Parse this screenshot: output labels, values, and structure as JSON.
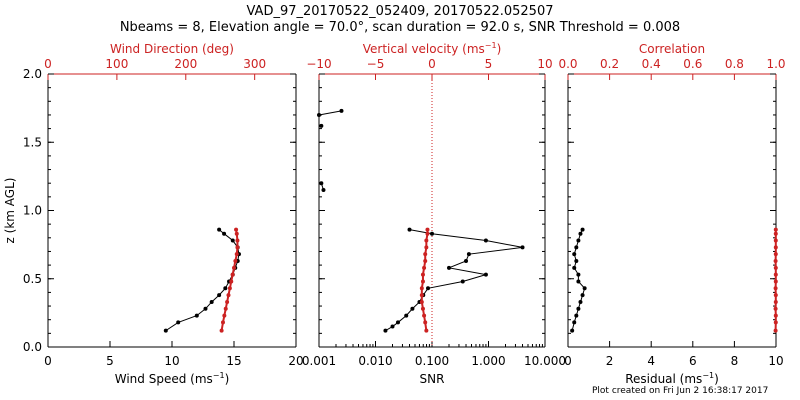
{
  "header": {
    "title": "VAD_97_20170522_052409, 20170522.052507",
    "subtitle": "Nbeams = 8, Elevation angle = 70.0°, scan duration = 92.0 s, SNR Threshold = 0.008"
  },
  "footer": {
    "text": "Plot created on Fri Jun  2 16:38:17 2017"
  },
  "colors": {
    "axis": "#000000",
    "secondary": "#cc2222",
    "marker": "#000000"
  },
  "chart_data": [
    {
      "type": "line",
      "panel": "wind",
      "ylabel": "z (km AGL)",
      "ylim": [
        0,
        2
      ],
      "yticks": [
        "0.0",
        "0.5",
        "1.0",
        "1.5",
        "2.0"
      ],
      "ytick_values": [
        0,
        0.5,
        1,
        1.5,
        2
      ],
      "bottom_axis": {
        "label_main": "Wind Speed (ms",
        "label_sup": "−1",
        "label_end": ")",
        "xlim": [
          0,
          20
        ],
        "ticks": [
          "0",
          "5",
          "10",
          "15",
          "20"
        ],
        "tick_values": [
          0,
          5,
          10,
          15,
          20
        ]
      },
      "top_axis": {
        "label_main": "Wind Direction (deg)",
        "label_sup": "",
        "label_end": "",
        "xlim": [
          0,
          360
        ],
        "ticks": [
          "0",
          "100",
          "200",
          "300"
        ],
        "tick_values": [
          0,
          100,
          200,
          300
        ]
      },
      "series": [
        {
          "axis": "bottom",
          "color": "black",
          "z": [
            0.12,
            0.18,
            0.23,
            0.28,
            0.33,
            0.38,
            0.43,
            0.48,
            0.53,
            0.58,
            0.63,
            0.68,
            0.73,
            0.78,
            0.83,
            0.86
          ],
          "values": [
            9.5,
            10.5,
            12.0,
            12.7,
            13.2,
            13.8,
            14.3,
            14.6,
            14.9,
            15.1,
            15.3,
            15.4,
            15.3,
            14.9,
            14.2,
            13.8
          ]
        },
        {
          "axis": "top",
          "color": "red",
          "z": [
            0.12,
            0.18,
            0.23,
            0.28,
            0.33,
            0.38,
            0.43,
            0.48,
            0.53,
            0.58,
            0.63,
            0.68,
            0.73,
            0.78,
            0.83,
            0.86
          ],
          "values": [
            252,
            254,
            256,
            258,
            260,
            262,
            264,
            266,
            268,
            270,
            272,
            274,
            275,
            275,
            274,
            273
          ]
        }
      ]
    },
    {
      "type": "line",
      "panel": "snr",
      "ylim": [
        0,
        2
      ],
      "bottom_axis": {
        "label_main": "SNR",
        "label_sup": "",
        "label_end": "",
        "scale": "log",
        "xlim": [
          0.001,
          10
        ],
        "ticks": [
          "0.001",
          "0.010",
          "0.100",
          "1.000",
          "10.000"
        ],
        "tick_values": [
          0.001,
          0.01,
          0.1,
          1,
          10
        ]
      },
      "top_axis": {
        "label_main": "Vertical velocity (ms",
        "label_sup": "−1",
        "label_end": ")",
        "xlim": [
          -10,
          10
        ],
        "ticks": [
          "−10",
          "−5",
          "0",
          "5",
          "10"
        ],
        "tick_values": [
          -10,
          -5,
          0,
          5,
          10
        ],
        "reference_line": 0
      },
      "series": [
        {
          "axis": "bottom",
          "color": "black",
          "segments": [
            {
              "z": [
                0.12,
                0.15,
                0.18,
                0.23,
                0.28,
                0.33,
                0.38,
                0.43,
                0.48,
                0.53,
                0.58,
                0.63,
                0.68,
                0.73,
                0.78,
                0.83,
                0.86
              ],
              "values": [
                0.015,
                0.02,
                0.025,
                0.035,
                0.045,
                0.06,
                0.07,
                0.085,
                0.35,
                0.9,
                0.2,
                0.4,
                0.45,
                4.0,
                0.9,
                0.1,
                0.04
              ]
            },
            {
              "z": [
                1.15,
                1.2
              ],
              "values": [
                0.0012,
                0.0011
              ]
            },
            {
              "z": [
                1.62
              ],
              "values": [
                0.0011
              ]
            },
            {
              "z": [
                1.7,
                1.73
              ],
              "values": [
                0.001,
                0.0025
              ]
            }
          ]
        },
        {
          "axis": "top",
          "color": "red",
          "z": [
            0.12,
            0.18,
            0.23,
            0.28,
            0.33,
            0.38,
            0.43,
            0.48,
            0.53,
            0.58,
            0.63,
            0.68,
            0.73,
            0.78,
            0.83,
            0.86
          ],
          "values": [
            -0.5,
            -0.6,
            -0.7,
            -0.8,
            -0.9,
            -0.9,
            -0.9,
            -0.8,
            -0.8,
            -0.7,
            -0.6,
            -0.6,
            -0.5,
            -0.5,
            -0.4,
            -0.4
          ]
        }
      ]
    },
    {
      "type": "line",
      "panel": "residual",
      "ylim": [
        0,
        2
      ],
      "bottom_axis": {
        "label_main": "Residual (ms",
        "label_sup": "−1",
        "label_end": ")",
        "xlim": [
          0,
          10
        ],
        "ticks": [
          "0",
          "2",
          "4",
          "6",
          "8",
          "10"
        ],
        "tick_values": [
          0,
          2,
          4,
          6,
          8,
          10
        ]
      },
      "top_axis": {
        "label_main": "Correlation",
        "label_sup": "",
        "label_end": "",
        "xlim": [
          0,
          1
        ],
        "ticks": [
          "0.0",
          "0.2",
          "0.4",
          "0.6",
          "0.8",
          "1.0"
        ],
        "tick_values": [
          0,
          0.2,
          0.4,
          0.6,
          0.8,
          1.0
        ]
      },
      "series": [
        {
          "axis": "bottom",
          "color": "black",
          "z": [
            0.12,
            0.18,
            0.23,
            0.28,
            0.33,
            0.38,
            0.43,
            0.48,
            0.53,
            0.58,
            0.63,
            0.68,
            0.73,
            0.78,
            0.83,
            0.86
          ],
          "values": [
            0.2,
            0.3,
            0.4,
            0.5,
            0.6,
            0.7,
            0.8,
            0.5,
            0.5,
            0.3,
            0.4,
            0.3,
            0.4,
            0.5,
            0.6,
            0.7
          ]
        },
        {
          "axis": "top",
          "color": "red",
          "z": [
            0.12,
            0.18,
            0.23,
            0.28,
            0.33,
            0.38,
            0.43,
            0.48,
            0.53,
            0.58,
            0.63,
            0.68,
            0.73,
            0.78,
            0.83,
            0.86
          ],
          "values": [
            0.998,
            0.999,
            0.999,
            0.998,
            0.999,
            0.999,
            0.998,
            0.999,
            0.999,
            0.999,
            0.998,
            0.999,
            0.999,
            0.999,
            0.999,
            0.999
          ]
        }
      ]
    }
  ]
}
